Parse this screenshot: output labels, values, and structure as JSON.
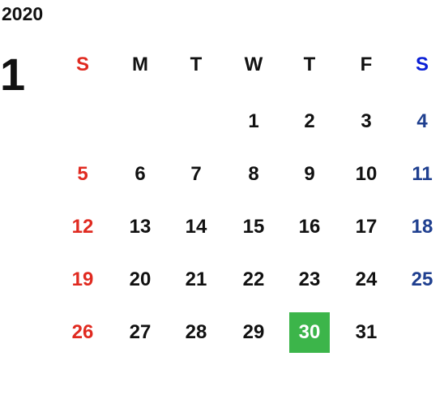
{
  "calendar": {
    "year": "2020",
    "month": "1",
    "weekdays": [
      "S",
      "M",
      "T",
      "W",
      "T",
      "F",
      "S"
    ],
    "weeks": [
      [
        null,
        null,
        null,
        1,
        2,
        3,
        4
      ],
      [
        5,
        6,
        7,
        8,
        9,
        10,
        11
      ],
      [
        12,
        13,
        14,
        15,
        16,
        17,
        18
      ],
      [
        19,
        20,
        21,
        22,
        23,
        24,
        25
      ],
      [
        26,
        27,
        28,
        29,
        30,
        31,
        null
      ]
    ],
    "selected": 30
  }
}
